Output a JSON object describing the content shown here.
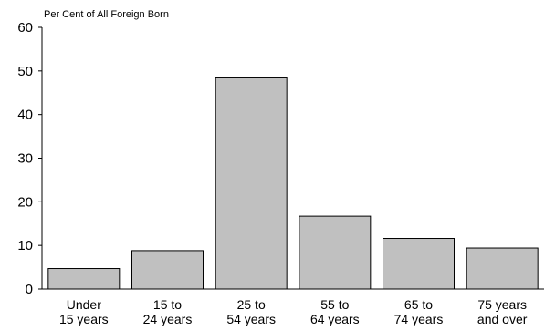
{
  "chart_data": {
    "type": "bar",
    "title": "",
    "ylabel": "Per Cent of All Foreign Born",
    "xlabel": "",
    "categories": [
      [
        "Under",
        "15 years"
      ],
      [
        "15 to",
        "24 years"
      ],
      [
        "25 to",
        "54 years"
      ],
      [
        "55 to",
        "64 years"
      ],
      [
        "65 to",
        "74 years"
      ],
      [
        "75 years",
        "and over"
      ]
    ],
    "values": [
      4.7,
      8.8,
      48.6,
      16.7,
      11.6,
      9.4
    ],
    "ylim": [
      0,
      60
    ],
    "yticks": [
      0,
      10,
      20,
      30,
      40,
      50,
      60
    ],
    "grid": false,
    "legend": "none",
    "bar_color": "#c0c0c0",
    "bar_stroke": "#000000"
  }
}
